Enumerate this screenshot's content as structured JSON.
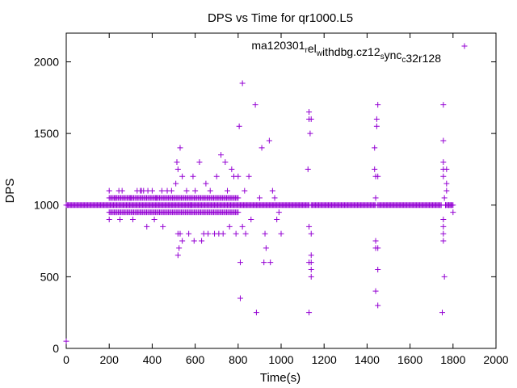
{
  "chart_data": {
    "type": "scatter",
    "title": "DPS vs Time for qr1000.L5",
    "xlabel": "Time(s)",
    "ylabel": "DPS",
    "xlim": [
      0,
      2000
    ],
    "ylim": [
      0,
      2200
    ],
    "xticks": [
      0,
      200,
      400,
      600,
      800,
      1000,
      1200,
      1400,
      1600,
      1800,
      2000
    ],
    "yticks": [
      0,
      500,
      1000,
      1500,
      2000
    ],
    "grid": false,
    "legend_position": "top-right",
    "series": [
      {
        "name": "ma120301_rel_withdbg.cz12_sync_c32r128",
        "legend_parts": [
          {
            "text": "ma120301",
            "sub": false
          },
          {
            "text": "r",
            "sub": true
          },
          {
            "text": "el",
            "sub": false
          },
          {
            "text": "w",
            "sub": true
          },
          {
            "text": "ithdbg.cz12",
            "sub": false
          },
          {
            "text": "s",
            "sub": true
          },
          {
            "text": "ync",
            "sub": false
          },
          {
            "text": "c",
            "sub": true
          },
          {
            "text": "32r128",
            "sub": false
          }
        ],
        "color": "#9400d3",
        "marker": "plus",
        "baseline": {
          "y": 1000,
          "segments": [
            [
              0,
              1130
            ],
            [
              1140,
              1440
            ],
            [
              1450,
              1745
            ],
            [
              1765,
              1800
            ]
          ]
        },
        "dense_bands": [
          {
            "x_range": [
              200,
              800
            ],
            "y": 950
          },
          {
            "x_range": [
              200,
              800
            ],
            "y": 1050
          }
        ],
        "points": [
          [
            0,
            50
          ],
          [
            200,
            1100
          ],
          [
            200,
            900
          ],
          [
            230,
            1050
          ],
          [
            245,
            1100
          ],
          [
            250,
            900
          ],
          [
            260,
            1100
          ],
          [
            300,
            1050
          ],
          [
            310,
            900
          ],
          [
            330,
            1100
          ],
          [
            345,
            1100
          ],
          [
            350,
            1100
          ],
          [
            360,
            1100
          ],
          [
            375,
            850
          ],
          [
            380,
            1100
          ],
          [
            400,
            1100
          ],
          [
            410,
            900
          ],
          [
            420,
            1050
          ],
          [
            445,
            1100
          ],
          [
            450,
            850
          ],
          [
            470,
            1100
          ],
          [
            490,
            1100
          ],
          [
            500,
            1050
          ],
          [
            510,
            1150
          ],
          [
            515,
            1300
          ],
          [
            520,
            1250
          ],
          [
            520,
            800
          ],
          [
            520,
            650
          ],
          [
            525,
            700
          ],
          [
            530,
            1400
          ],
          [
            530,
            800
          ],
          [
            540,
            1200
          ],
          [
            540,
            750
          ],
          [
            560,
            1100
          ],
          [
            570,
            800
          ],
          [
            580,
            1000
          ],
          [
            590,
            1200
          ],
          [
            595,
            750
          ],
          [
            600,
            1100
          ],
          [
            620,
            1300
          ],
          [
            630,
            750
          ],
          [
            640,
            800
          ],
          [
            650,
            1150
          ],
          [
            660,
            800
          ],
          [
            670,
            1100
          ],
          [
            690,
            800
          ],
          [
            700,
            1200
          ],
          [
            710,
            800
          ],
          [
            720,
            1350
          ],
          [
            730,
            800
          ],
          [
            740,
            1300
          ],
          [
            750,
            1100
          ],
          [
            760,
            850
          ],
          [
            770,
            1250
          ],
          [
            780,
            1200
          ],
          [
            790,
            800
          ],
          [
            800,
            1200
          ],
          [
            805,
            1550
          ],
          [
            810,
            350
          ],
          [
            810,
            600
          ],
          [
            820,
            1850
          ],
          [
            820,
            850
          ],
          [
            830,
            1100
          ],
          [
            835,
            800
          ],
          [
            850,
            1200
          ],
          [
            860,
            900
          ],
          [
            880,
            1700
          ],
          [
            885,
            250
          ],
          [
            900,
            1050
          ],
          [
            910,
            1400
          ],
          [
            920,
            600
          ],
          [
            925,
            800
          ],
          [
            930,
            700
          ],
          [
            945,
            1450
          ],
          [
            950,
            600
          ],
          [
            960,
            1100
          ],
          [
            970,
            1050
          ],
          [
            980,
            900
          ],
          [
            990,
            950
          ],
          [
            1000,
            800
          ],
          [
            1125,
            1250
          ],
          [
            1130,
            1650
          ],
          [
            1130,
            1600
          ],
          [
            1130,
            850
          ],
          [
            1130,
            600
          ],
          [
            1130,
            250
          ],
          [
            1135,
            1500
          ],
          [
            1140,
            1600
          ],
          [
            1140,
            800
          ],
          [
            1140,
            550
          ],
          [
            1140,
            500
          ],
          [
            1140,
            650
          ],
          [
            1140,
            600
          ],
          [
            1435,
            1400
          ],
          [
            1435,
            1250
          ],
          [
            1440,
            1200
          ],
          [
            1440,
            700
          ],
          [
            1440,
            750
          ],
          [
            1440,
            400
          ],
          [
            1445,
            1600
          ],
          [
            1445,
            1550
          ],
          [
            1450,
            1700
          ],
          [
            1450,
            1200
          ],
          [
            1450,
            700
          ],
          [
            1450,
            550
          ],
          [
            1450,
            300
          ],
          [
            1440,
            1050
          ],
          [
            1750,
            250
          ],
          [
            1755,
            1700
          ],
          [
            1755,
            1450
          ],
          [
            1755,
            1300
          ],
          [
            1755,
            1250
          ],
          [
            1755,
            1200
          ],
          [
            1755,
            900
          ],
          [
            1755,
            850
          ],
          [
            1755,
            800
          ],
          [
            1755,
            750
          ],
          [
            1760,
            500
          ],
          [
            1760,
            1050
          ],
          [
            1765,
            1000
          ],
          [
            1770,
            1250
          ],
          [
            1770,
            1150
          ],
          [
            1770,
            1100
          ],
          [
            1780,
            1000
          ],
          [
            1790,
            1000
          ],
          [
            1800,
            950
          ]
        ]
      }
    ]
  }
}
